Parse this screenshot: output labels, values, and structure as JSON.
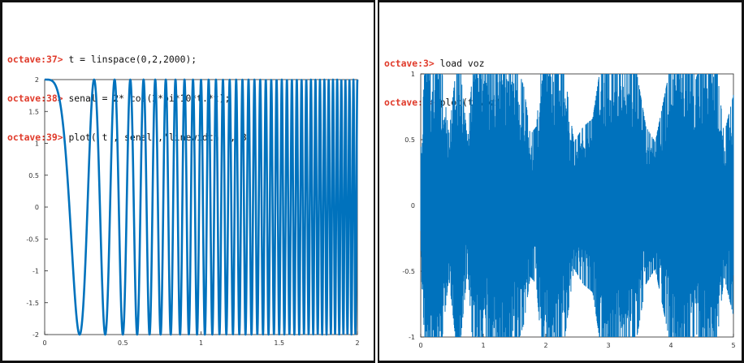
{
  "left_panel": {
    "console": [
      {
        "prompt": "octave:37>",
        "command": "t = linspace(0,2,2000);"
      },
      {
        "prompt": "octave:38>",
        "command": "senal = 2* cos(2*pi*10*t.*t);"
      },
      {
        "prompt": "octave:39>",
        "command": "plot( t , senal ,'linewidth' , 3 )"
      }
    ]
  },
  "right_panel": {
    "console": [
      {
        "prompt": "octave:3>",
        "command": "load voz"
      },
      {
        "prompt": "octave:4>",
        "command": "plot(t,voz)"
      }
    ]
  },
  "colors": {
    "line": "#0072bd",
    "prompt": "#e03a2a"
  },
  "chart_data": [
    {
      "type": "line",
      "title": "",
      "xlabel": "",
      "ylabel": "",
      "function": "2*cos(2*pi*10*t.*t)",
      "x_range": [
        0,
        2
      ],
      "points": 2000,
      "line_width": 3,
      "xlim": [
        0,
        2
      ],
      "ylim": [
        -2,
        2
      ],
      "x_ticks": [
        "0",
        "0.5",
        "1",
        "1.5",
        "2"
      ],
      "y_ticks": [
        "2",
        "1.5",
        "1",
        "0.5",
        "0",
        "-0.5",
        "-1",
        "-1.5",
        "-2"
      ],
      "x_tick_values": [
        0,
        0.5,
        1,
        1.5,
        2
      ],
      "y_tick_values": [
        2,
        1.5,
        1,
        0.5,
        0,
        -0.5,
        -1,
        -1.5,
        -2
      ],
      "grid": false
    },
    {
      "type": "line",
      "title": "",
      "xlabel": "",
      "ylabel": "",
      "description_signal": "voz",
      "xlim": [
        0,
        5
      ],
      "ylim": [
        -1,
        1
      ],
      "x_ticks": [
        "0",
        "1",
        "2",
        "3",
        "4",
        "5"
      ],
      "y_ticks": [
        "1",
        "0.5",
        "0",
        "-0.5",
        "-1"
      ],
      "x_tick_values": [
        0,
        1,
        2,
        3,
        4,
        5
      ],
      "y_tick_values": [
        1,
        0.5,
        0,
        -0.5,
        -1
      ],
      "amplitude_envelope": [
        {
          "x": 0.0,
          "a": 0.35
        },
        {
          "x": 0.08,
          "a": 1.0
        },
        {
          "x": 0.3,
          "a": 1.0
        },
        {
          "x": 0.45,
          "a": 0.45
        },
        {
          "x": 0.6,
          "a": 1.0
        },
        {
          "x": 0.75,
          "a": 0.4
        },
        {
          "x": 0.85,
          "a": 1.0
        },
        {
          "x": 1.0,
          "a": 1.0
        },
        {
          "x": 1.1,
          "a": 0.9
        },
        {
          "x": 1.25,
          "a": 1.0
        },
        {
          "x": 1.45,
          "a": 1.0
        },
        {
          "x": 1.65,
          "a": 0.75
        },
        {
          "x": 1.75,
          "a": 0.45
        },
        {
          "x": 1.85,
          "a": 0.5
        },
        {
          "x": 1.95,
          "a": 1.0
        },
        {
          "x": 2.1,
          "a": 1.0
        },
        {
          "x": 2.3,
          "a": 0.85
        },
        {
          "x": 2.45,
          "a": 0.4
        },
        {
          "x": 2.6,
          "a": 0.5
        },
        {
          "x": 2.75,
          "a": 0.55
        },
        {
          "x": 2.9,
          "a": 0.95
        },
        {
          "x": 3.0,
          "a": 1.0
        },
        {
          "x": 3.15,
          "a": 1.0
        },
        {
          "x": 3.3,
          "a": 0.9
        },
        {
          "x": 3.45,
          "a": 0.85
        },
        {
          "x": 3.6,
          "a": 0.5
        },
        {
          "x": 3.75,
          "a": 0.4
        },
        {
          "x": 3.9,
          "a": 0.7
        },
        {
          "x": 4.05,
          "a": 1.0
        },
        {
          "x": 4.25,
          "a": 1.0
        },
        {
          "x": 4.4,
          "a": 0.8
        },
        {
          "x": 4.55,
          "a": 1.0
        },
        {
          "x": 4.7,
          "a": 1.0
        },
        {
          "x": 4.85,
          "a": 0.45
        },
        {
          "x": 5.0,
          "a": 0.7
        }
      ]
    }
  ]
}
